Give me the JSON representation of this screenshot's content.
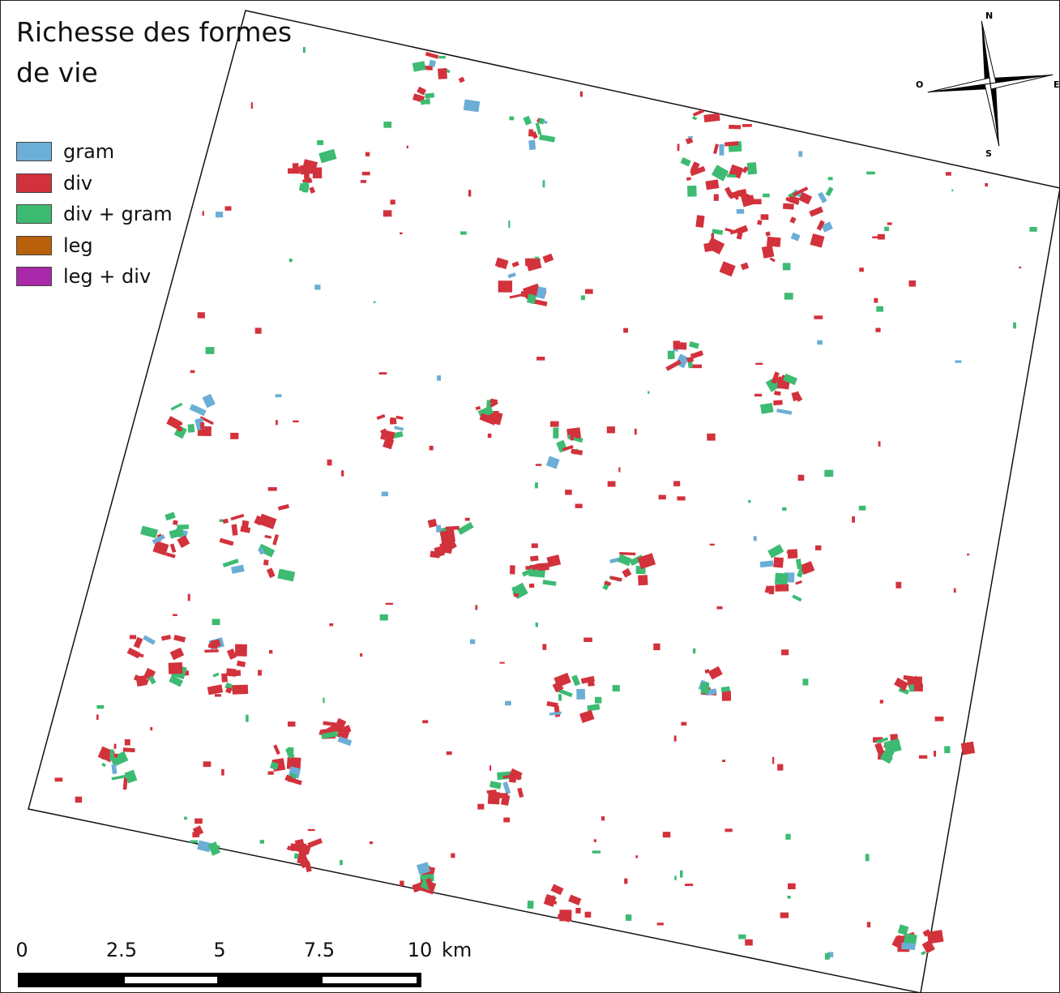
{
  "map": {
    "title_line1": "Richesse des formes",
    "title_line2": "de vie"
  },
  "legend": {
    "items": [
      {
        "label": "gram",
        "color": "#6baed6"
      },
      {
        "label": "div",
        "color": "#d2323c"
      },
      {
        "label": "div + gram",
        "color": "#3dbb72"
      },
      {
        "label": "leg",
        "color": "#b8600a"
      },
      {
        "label": "leg + div",
        "color": "#aa28aa"
      }
    ]
  },
  "scale_bar": {
    "ticks": [
      "0",
      "2.5",
      "5",
      "7.5",
      "10"
    ],
    "unit": "km"
  },
  "compass": {
    "north": "N",
    "south": "S",
    "east": "E",
    "west": "O"
  }
}
